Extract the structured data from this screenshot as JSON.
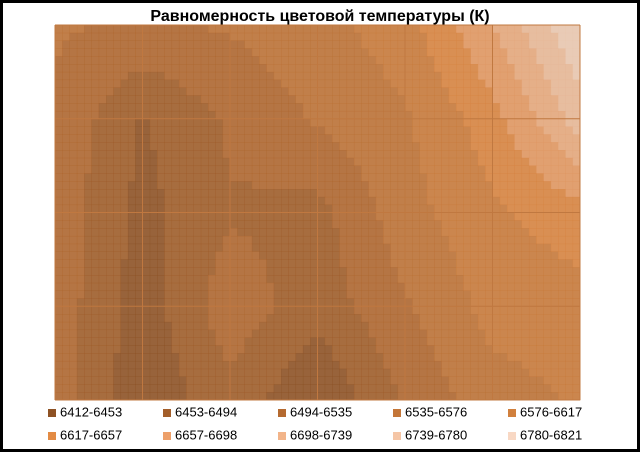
{
  "chart_data": {
    "type": "contour",
    "title": "Равномерность  цветовой температуры (К)",
    "values": [
      [
        6540,
        6530,
        6540,
        6560,
        6600,
        6700,
        6821
      ],
      [
        6530,
        6450,
        6500,
        6540,
        6570,
        6640,
        6760
      ],
      [
        6520,
        6440,
        6490,
        6480,
        6560,
        6610,
        6640
      ],
      [
        6520,
        6430,
        6520,
        6470,
        6530,
        6590,
        6600
      ],
      [
        6520,
        6420,
        6480,
        6412,
        6500,
        6560,
        6580
      ]
    ],
    "levels": [
      6412,
      6453,
      6494,
      6535,
      6576,
      6617,
      6657,
      6698,
      6739,
      6780,
      6821
    ],
    "series": [
      {
        "name": "6412-6453",
        "color": "#8e5224"
      },
      {
        "name": "6453-6494",
        "color": "#a35e2a"
      },
      {
        "name": "6494-6535",
        "color": "#b56a30"
      },
      {
        "name": "6535-6576",
        "color": "#c47638"
      },
      {
        "name": "6576-6617",
        "color": "#d1803d"
      },
      {
        "name": "6617-6657",
        "color": "#e38b44"
      },
      {
        "name": "6657-6698",
        "color": "#eda06a"
      },
      {
        "name": "6698-6739",
        "color": "#f2b489"
      },
      {
        "name": "6739-6780",
        "color": "#f5c6a6"
      },
      {
        "name": "6780-6821",
        "color": "#f8d8c4"
      }
    ],
    "grid": true
  }
}
